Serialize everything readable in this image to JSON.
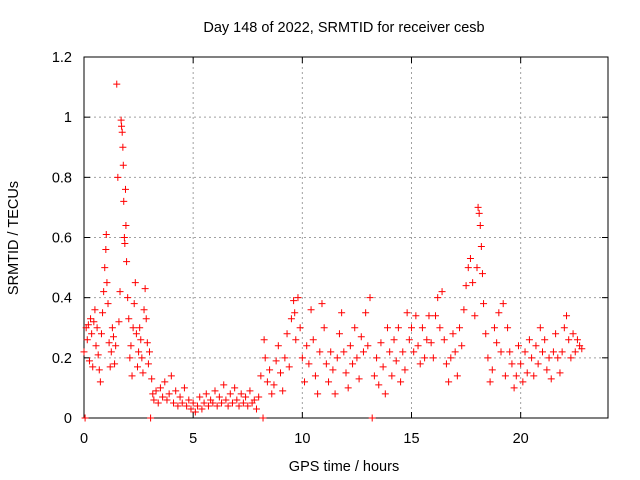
{
  "chart_data": {
    "type": "scatter",
    "title": "Day 148 of 2022, SRMTID for receiver cesb",
    "xlabel": "GPS time / hours",
    "ylabel": "SRMTID / TECUs",
    "xlim": [
      0,
      24
    ],
    "ylim": [
      0,
      1.2
    ],
    "xticks": [
      0,
      5,
      10,
      15,
      20
    ],
    "xtick_labels": [
      "0",
      "5",
      "10",
      "15",
      "20"
    ],
    "yticks": [
      0,
      0.2,
      0.4,
      0.6,
      0.8,
      1.0,
      1.2
    ],
    "ytick_labels": [
      "0",
      "0.2",
      "0.4",
      "0.6",
      "0.8",
      "1",
      "1.2"
    ],
    "grid": true,
    "marker": "+",
    "color": "#ff0000",
    "series": [
      {
        "name": "SRMTID",
        "points": [
          [
            0.0,
            0.22
          ],
          [
            0.05,
            0.0
          ],
          [
            0.1,
            0.3
          ],
          [
            0.15,
            0.26
          ],
          [
            0.2,
            0.31
          ],
          [
            0.25,
            0.19
          ],
          [
            0.3,
            0.33
          ],
          [
            0.35,
            0.28
          ],
          [
            0.4,
            0.17
          ],
          [
            0.45,
            0.32
          ],
          [
            0.5,
            0.36
          ],
          [
            0.55,
            0.24
          ],
          [
            0.6,
            0.3
          ],
          [
            0.65,
            0.21
          ],
          [
            0.7,
            0.16
          ],
          [
            0.75,
            0.12
          ],
          [
            0.8,
            0.28
          ],
          [
            0.85,
            0.35
          ],
          [
            0.9,
            0.42
          ],
          [
            0.95,
            0.5
          ],
          [
            1.0,
            0.56
          ],
          [
            1.02,
            0.61
          ],
          [
            1.05,
            0.45
          ],
          [
            1.1,
            0.38
          ],
          [
            1.15,
            0.25
          ],
          [
            1.2,
            0.17
          ],
          [
            1.25,
            0.22
          ],
          [
            1.3,
            0.3
          ],
          [
            1.35,
            0.27
          ],
          [
            1.4,
            0.18
          ],
          [
            1.45,
            0.24
          ],
          [
            1.5,
            1.11
          ],
          [
            1.55,
            0.8
          ],
          [
            1.6,
            0.32
          ],
          [
            1.65,
            0.42
          ],
          [
            1.7,
            0.99
          ],
          [
            1.72,
            0.97
          ],
          [
            1.75,
            0.95
          ],
          [
            1.78,
            0.9
          ],
          [
            1.8,
            0.84
          ],
          [
            1.82,
            0.72
          ],
          [
            1.85,
            0.6
          ],
          [
            1.87,
            0.58
          ],
          [
            1.9,
            0.76
          ],
          [
            1.92,
            0.64
          ],
          [
            1.95,
            0.52
          ],
          [
            2.0,
            0.4
          ],
          [
            2.05,
            0.33
          ],
          [
            2.1,
            0.2
          ],
          [
            2.15,
            0.24
          ],
          [
            2.2,
            0.14
          ],
          [
            2.25,
            0.3
          ],
          [
            2.3,
            0.38
          ],
          [
            2.35,
            0.45
          ],
          [
            2.4,
            0.28
          ],
          [
            2.45,
            0.17
          ],
          [
            2.5,
            0.22
          ],
          [
            2.55,
            0.3
          ],
          [
            2.6,
            0.26
          ],
          [
            2.65,
            0.2
          ],
          [
            2.7,
            0.15
          ],
          [
            2.75,
            0.36
          ],
          [
            2.8,
            0.43
          ],
          [
            2.85,
            0.33
          ],
          [
            2.9,
            0.25
          ],
          [
            2.95,
            0.18
          ],
          [
            3.0,
            0.22
          ],
          [
            3.05,
            0.0
          ],
          [
            3.1,
            0.13
          ],
          [
            3.15,
            0.08
          ],
          [
            3.2,
            0.06
          ],
          [
            3.3,
            0.09
          ],
          [
            3.4,
            0.05
          ],
          [
            3.5,
            0.1
          ],
          [
            3.6,
            0.07
          ],
          [
            3.7,
            0.12
          ],
          [
            3.8,
            0.06
          ],
          [
            3.9,
            0.08
          ],
          [
            4.0,
            0.14
          ],
          [
            4.1,
            0.05
          ],
          [
            4.2,
            0.09
          ],
          [
            4.3,
            0.04
          ],
          [
            4.4,
            0.07
          ],
          [
            4.5,
            0.05
          ],
          [
            4.6,
            0.1
          ],
          [
            4.7,
            0.04
          ],
          [
            4.8,
            0.06
          ],
          [
            4.9,
            0.03
          ],
          [
            5.0,
            0.05
          ],
          [
            5.1,
            0.02
          ],
          [
            5.2,
            0.04
          ],
          [
            5.3,
            0.07
          ],
          [
            5.4,
            0.03
          ],
          [
            5.5,
            0.05
          ],
          [
            5.6,
            0.08
          ],
          [
            5.7,
            0.04
          ],
          [
            5.8,
            0.06
          ],
          [
            5.9,
            0.05
          ],
          [
            6.0,
            0.09
          ],
          [
            6.1,
            0.04
          ],
          [
            6.2,
            0.07
          ],
          [
            6.3,
            0.05
          ],
          [
            6.4,
            0.11
          ],
          [
            6.5,
            0.06
          ],
          [
            6.6,
            0.04
          ],
          [
            6.7,
            0.08
          ],
          [
            6.8,
            0.05
          ],
          [
            6.9,
            0.1
          ],
          [
            7.0,
            0.06
          ],
          [
            7.1,
            0.04
          ],
          [
            7.2,
            0.08
          ],
          [
            7.3,
            0.05
          ],
          [
            7.4,
            0.07
          ],
          [
            7.5,
            0.04
          ],
          [
            7.6,
            0.09
          ],
          [
            7.7,
            0.05
          ],
          [
            7.8,
            0.06
          ],
          [
            7.9,
            0.03
          ],
          [
            8.0,
            0.07
          ],
          [
            8.1,
            0.14
          ],
          [
            8.2,
            0.0
          ],
          [
            8.25,
            0.26
          ],
          [
            8.3,
            0.2
          ],
          [
            8.4,
            0.12
          ],
          [
            8.5,
            0.16
          ],
          [
            8.6,
            0.08
          ],
          [
            8.7,
            0.11
          ],
          [
            8.8,
            0.19
          ],
          [
            8.9,
            0.24
          ],
          [
            9.0,
            0.15
          ],
          [
            9.1,
            0.09
          ],
          [
            9.2,
            0.2
          ],
          [
            9.3,
            0.28
          ],
          [
            9.4,
            0.17
          ],
          [
            9.5,
            0.33
          ],
          [
            9.6,
            0.39
          ],
          [
            9.65,
            0.35
          ],
          [
            9.7,
            0.26
          ],
          [
            9.8,
            0.4
          ],
          [
            9.9,
            0.3
          ],
          [
            10.0,
            0.2
          ],
          [
            10.1,
            0.12
          ],
          [
            10.2,
            0.24
          ],
          [
            10.3,
            0.18
          ],
          [
            10.4,
            0.36
          ],
          [
            10.5,
            0.26
          ],
          [
            10.6,
            0.14
          ],
          [
            10.7,
            0.08
          ],
          [
            10.8,
            0.22
          ],
          [
            10.9,
            0.38
          ],
          [
            11.0,
            0.3
          ],
          [
            11.1,
            0.18
          ],
          [
            11.2,
            0.12
          ],
          [
            11.3,
            0.22
          ],
          [
            11.4,
            0.16
          ],
          [
            11.5,
            0.08
          ],
          [
            11.6,
            0.2
          ],
          [
            11.7,
            0.28
          ],
          [
            11.8,
            0.35
          ],
          [
            11.9,
            0.22
          ],
          [
            12.0,
            0.15
          ],
          [
            12.1,
            0.1
          ],
          [
            12.2,
            0.24
          ],
          [
            12.3,
            0.18
          ],
          [
            12.4,
            0.3
          ],
          [
            12.5,
            0.2
          ],
          [
            12.6,
            0.13
          ],
          [
            12.7,
            0.27
          ],
          [
            12.8,
            0.22
          ],
          [
            12.9,
            0.35
          ],
          [
            13.0,
            0.24
          ],
          [
            13.1,
            0.4
          ],
          [
            13.2,
            0.0
          ],
          [
            13.3,
            0.14
          ],
          [
            13.4,
            0.2
          ],
          [
            13.5,
            0.11
          ],
          [
            13.6,
            0.25
          ],
          [
            13.7,
            0.17
          ],
          [
            13.8,
            0.08
          ],
          [
            13.9,
            0.3
          ],
          [
            14.0,
            0.22
          ],
          [
            14.1,
            0.14
          ],
          [
            14.2,
            0.26
          ],
          [
            14.3,
            0.19
          ],
          [
            14.4,
            0.3
          ],
          [
            14.5,
            0.12
          ],
          [
            14.6,
            0.22
          ],
          [
            14.7,
            0.16
          ],
          [
            14.8,
            0.35
          ],
          [
            14.9,
            0.26
          ],
          [
            15.0,
            0.3
          ],
          [
            15.1,
            0.22
          ],
          [
            15.2,
            0.34
          ],
          [
            15.3,
            0.24
          ],
          [
            15.4,
            0.18
          ],
          [
            15.5,
            0.3
          ],
          [
            15.6,
            0.2
          ],
          [
            15.7,
            0.26
          ],
          [
            15.8,
            0.34
          ],
          [
            15.9,
            0.25
          ],
          [
            16.0,
            0.2
          ],
          [
            16.1,
            0.34
          ],
          [
            16.2,
            0.4
          ],
          [
            16.3,
            0.3
          ],
          [
            16.4,
            0.42
          ],
          [
            16.5,
            0.26
          ],
          [
            16.6,
            0.18
          ],
          [
            16.7,
            0.12
          ],
          [
            16.8,
            0.2
          ],
          [
            16.9,
            0.28
          ],
          [
            17.0,
            0.22
          ],
          [
            17.1,
            0.14
          ],
          [
            17.2,
            0.3
          ],
          [
            17.3,
            0.24
          ],
          [
            17.4,
            0.36
          ],
          [
            17.5,
            0.44
          ],
          [
            17.6,
            0.5
          ],
          [
            17.7,
            0.53
          ],
          [
            17.8,
            0.45
          ],
          [
            17.9,
            0.34
          ],
          [
            18.0,
            0.5
          ],
          [
            18.05,
            0.7
          ],
          [
            18.1,
            0.68
          ],
          [
            18.15,
            0.64
          ],
          [
            18.2,
            0.57
          ],
          [
            18.25,
            0.48
          ],
          [
            18.3,
            0.38
          ],
          [
            18.4,
            0.28
          ],
          [
            18.5,
            0.2
          ],
          [
            18.6,
            0.12
          ],
          [
            18.7,
            0.16
          ],
          [
            18.8,
            0.3
          ],
          [
            18.9,
            0.25
          ],
          [
            19.0,
            0.35
          ],
          [
            19.1,
            0.22
          ],
          [
            19.2,
            0.38
          ],
          [
            19.3,
            0.14
          ],
          [
            19.4,
            0.3
          ],
          [
            19.5,
            0.22
          ],
          [
            19.6,
            0.18
          ],
          [
            19.7,
            0.1
          ],
          [
            19.8,
            0.14
          ],
          [
            19.9,
            0.24
          ],
          [
            20.0,
            0.18
          ],
          [
            20.1,
            0.12
          ],
          [
            20.2,
            0.22
          ],
          [
            20.3,
            0.15
          ],
          [
            20.4,
            0.26
          ],
          [
            20.5,
            0.2
          ],
          [
            20.6,
            0.14
          ],
          [
            20.7,
            0.24
          ],
          [
            20.8,
            0.18
          ],
          [
            20.9,
            0.3
          ],
          [
            21.0,
            0.22
          ],
          [
            21.1,
            0.26
          ],
          [
            21.2,
            0.16
          ],
          [
            21.3,
            0.2
          ],
          [
            21.4,
            0.13
          ],
          [
            21.5,
            0.22
          ],
          [
            21.6,
            0.28
          ],
          [
            21.7,
            0.2
          ],
          [
            21.8,
            0.15
          ],
          [
            21.9,
            0.22
          ],
          [
            22.0,
            0.3
          ],
          [
            22.1,
            0.34
          ],
          [
            22.2,
            0.26
          ],
          [
            22.3,
            0.2
          ],
          [
            22.4,
            0.28
          ],
          [
            22.5,
            0.22
          ],
          [
            22.6,
            0.26
          ],
          [
            22.7,
            0.24
          ],
          [
            22.8,
            0.23
          ]
        ]
      }
    ]
  }
}
